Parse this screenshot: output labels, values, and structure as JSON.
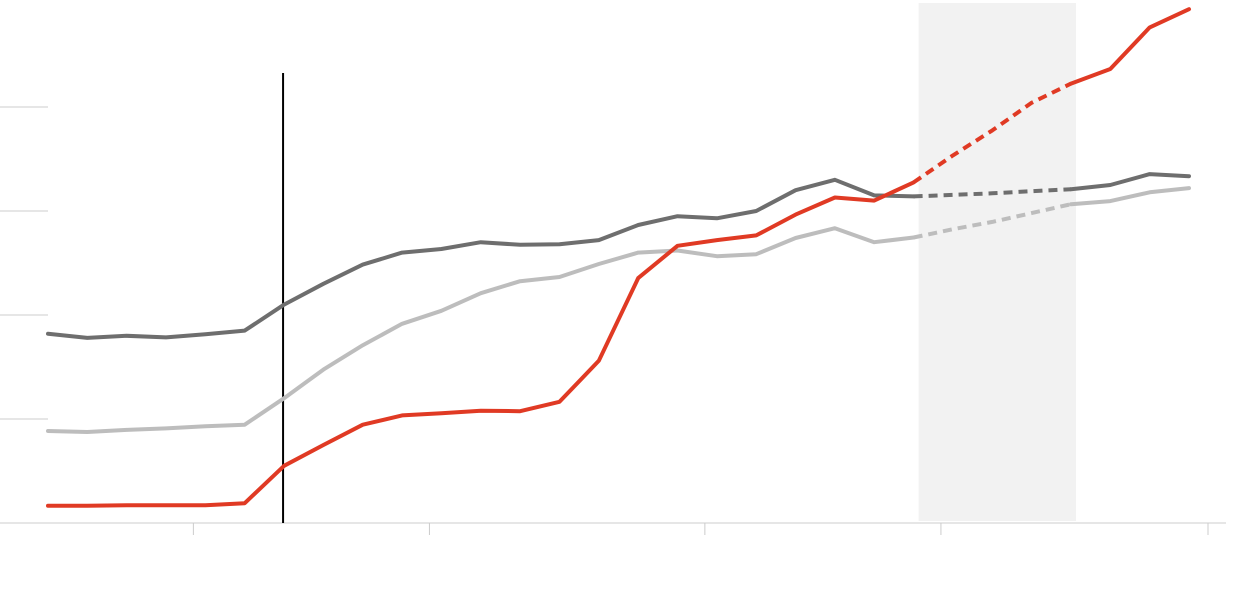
{
  "chart_data": {
    "type": "line",
    "title": "",
    "xlabel": "",
    "ylabel": "",
    "xlim": [
      -0.5,
      29.5
    ],
    "ylim": [
      0,
      100
    ],
    "grid": false,
    "y_ticks": [
      0,
      20,
      40,
      60,
      80
    ],
    "x_ticks": [
      4,
      10,
      17,
      23,
      29
    ],
    "vertical_marker_x": 6,
    "shaded_band_x": [
      22,
      26
    ],
    "colors": {
      "red": "#e03a24",
      "dark_gray": "#6e6e6e",
      "light_gray": "#bdbdbd",
      "band": "#f2f2f2",
      "marker": "#000000",
      "axis": "#cccccc"
    },
    "x": [
      0,
      1,
      2,
      3,
      4,
      5,
      6,
      7,
      8,
      9,
      10,
      11,
      12,
      13,
      14,
      15,
      16,
      17,
      18,
      19,
      20,
      21,
      22,
      23,
      24,
      25,
      26,
      27,
      28,
      29
    ],
    "series": [
      {
        "color_key": "dark_gray",
        "values": [
          36.4,
          35.6,
          36.0,
          35.7,
          36.3,
          37.0,
          42.0,
          46.0,
          49.7,
          52.0,
          52.7,
          54.0,
          53.5,
          53.6,
          54.4,
          57.3,
          59.0,
          58.6,
          60.0,
          64.0,
          66.0,
          63.0,
          62.8,
          63.1,
          63.4,
          63.8,
          64.2,
          65.0,
          67.1,
          66.7
        ],
        "solid_until": 22,
        "dashed_from": 22,
        "dashed_to": 26,
        "solid_from": 26
      },
      {
        "color_key": "light_gray",
        "values": [
          17.7,
          17.5,
          17.9,
          18.2,
          18.6,
          18.9,
          24.0,
          29.5,
          34.2,
          38.3,
          40.8,
          44.2,
          46.5,
          47.3,
          49.8,
          52.0,
          52.4,
          51.3,
          51.7,
          54.8,
          56.7,
          54.0,
          54.9,
          56.5,
          57.9,
          59.6,
          61.3,
          61.9,
          63.6,
          64.4
        ],
        "solid_until": 22,
        "dashed_from": 22,
        "dashed_to": 26,
        "solid_from": 26
      },
      {
        "color_key": "red",
        "values": [
          3.3,
          3.3,
          3.4,
          3.4,
          3.4,
          3.8,
          11.0,
          15.0,
          18.9,
          20.7,
          21.1,
          21.6,
          21.5,
          23.3,
          31.2,
          47.1,
          53.3,
          54.4,
          55.3,
          59.3,
          62.6,
          62.0,
          65.5,
          70.7,
          75.5,
          80.8,
          84.5,
          87.3,
          95.3,
          98.8
        ],
        "solid_until": 22,
        "dashed_from": 22,
        "dashed_to": 26,
        "solid_from": 26
      }
    ]
  }
}
